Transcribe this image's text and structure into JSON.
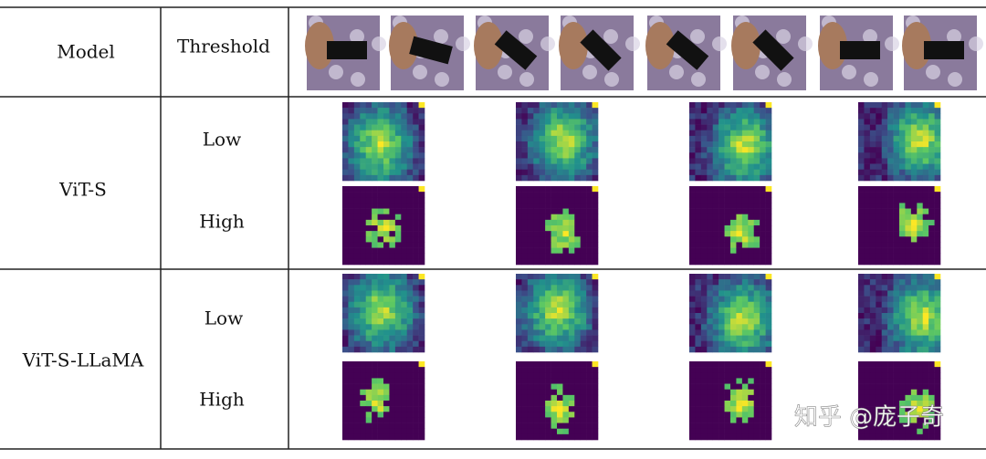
{
  "header": {
    "model": "Model",
    "threshold": "Threshold"
  },
  "rows": [
    {
      "model": "ViT-S",
      "thresholds": [
        "Low",
        "High"
      ]
    },
    {
      "model": "ViT-S-LLaMA",
      "thresholds": [
        "Low",
        "High"
      ]
    }
  ],
  "watermark": "知乎 @庞子奇"
}
